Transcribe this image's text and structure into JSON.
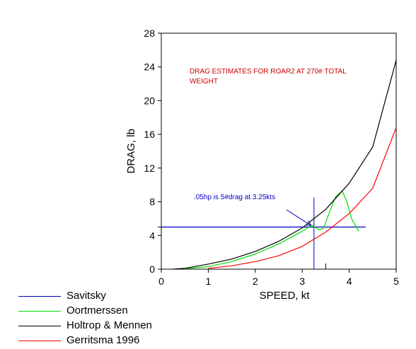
{
  "chart_data": {
    "type": "line",
    "xlabel": "SPEED, kt",
    "ylabel": "DRAG, lb",
    "xlim": [
      0,
      5
    ],
    "ylim": [
      0,
      28
    ],
    "x_ticks": [
      "0",
      "1",
      "2",
      "3",
      "4",
      "5"
    ],
    "y_ticks": [
      "0",
      "4",
      "8",
      "12",
      "16",
      "20",
      "24",
      "28"
    ],
    "grid": false,
    "legend_position": "bottom-left",
    "annotations": {
      "title_line1": "DRAG ESTIMATES FOR ROAR2 AT 270# TOTAL",
      "title_line2": "WEIGHT",
      "callout": ".05hp is 5#drag at 3.25kts"
    },
    "series": [
      {
        "name": "Savitsky",
        "color": "#0000c0",
        "x": [
          0,
          4.35
        ],
        "y": [
          5,
          5
        ]
      },
      {
        "name": "Oortmerssen",
        "color": "#00dd00",
        "x": [
          0.5,
          1,
          1.5,
          2,
          2.5,
          3,
          3.2,
          3.35,
          3.45,
          3.55,
          3.7,
          3.85,
          3.95,
          4.05,
          4.2
        ],
        "y": [
          0.05,
          0.3,
          0.9,
          1.8,
          3.0,
          4.5,
          5.2,
          4.7,
          4.8,
          6.3,
          8.5,
          9.3,
          8.0,
          6.0,
          4.5
        ]
      },
      {
        "name": "Holtrop & Mennen",
        "color": "#000000",
        "x": [
          0.25,
          0.5,
          1,
          1.5,
          2,
          2.5,
          3,
          3.5,
          4,
          4.5,
          5
        ],
        "y": [
          0,
          0.1,
          0.6,
          1.2,
          2.1,
          3.3,
          4.9,
          7.1,
          10.2,
          14.5,
          24.8
        ]
      },
      {
        "name": "Gerritsma 1996",
        "color": "#ff0000",
        "x": [
          1,
          1.5,
          2,
          2.5,
          3,
          3.5,
          4,
          4.5,
          5
        ],
        "y": [
          0.1,
          0.4,
          0.9,
          1.6,
          2.7,
          4.4,
          6.6,
          9.6,
          16.8
        ]
      }
    ],
    "reference_lines": {
      "vertical_x": 3.25,
      "vertical_y_range": [
        0,
        8.5
      ]
    }
  }
}
